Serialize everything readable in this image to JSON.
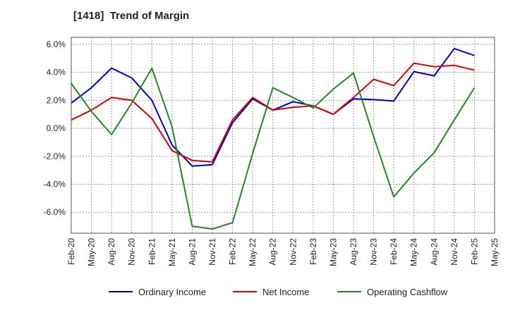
{
  "chart_data": {
    "type": "line",
    "title": "[1418]  Trend of Margin",
    "xlabel": "",
    "ylabel": "",
    "categories": [
      "Feb-20",
      "May-20",
      "Aug-20",
      "Nov-20",
      "Feb-21",
      "May-21",
      "Aug-21",
      "Nov-21",
      "Feb-22",
      "May-22",
      "Aug-22",
      "Nov-22",
      "Feb-23",
      "May-23",
      "Aug-23",
      "Nov-23",
      "Feb-24",
      "May-24",
      "Aug-24",
      "Nov-24",
      "Feb-25",
      "May-25"
    ],
    "y_ticks": [
      "6.0%",
      "4.0%",
      "2.0%",
      "0.0%",
      "-2.0%",
      "-4.0%",
      "-6.0%"
    ],
    "ylim": [
      -7.5,
      6.5
    ],
    "grid": true,
    "legend_position": "bottom",
    "series": [
      {
        "name": "Ordinary Income",
        "color": "#0000cc",
        "values": [
          1.8,
          2.9,
          4.3,
          3.6,
          2.0,
          -1.2,
          -2.7,
          -2.6,
          0.4,
          2.1,
          1.3,
          1.9,
          1.6,
          1.0,
          2.1,
          2.05,
          1.95,
          4.05,
          3.75,
          5.7,
          5.2,
          null
        ]
      },
      {
        "name": "Net Income",
        "color": "#dd0000",
        "values": [
          0.6,
          1.3,
          2.2,
          2.0,
          0.7,
          -1.6,
          -2.3,
          -2.4,
          0.6,
          2.2,
          1.3,
          1.5,
          1.6,
          1.0,
          2.2,
          3.5,
          3.05,
          4.65,
          4.4,
          4.5,
          4.15,
          null
        ]
      },
      {
        "name": "Operating Cashflow",
        "color": "#228822",
        "values": [
          3.2,
          1.2,
          -0.45,
          1.8,
          4.3,
          0.1,
          -7.0,
          -7.2,
          -6.75,
          -1.8,
          2.9,
          2.2,
          1.45,
          2.8,
          3.95,
          -0.6,
          -4.9,
          -3.2,
          -1.75,
          0.6,
          2.9,
          null
        ]
      }
    ]
  }
}
